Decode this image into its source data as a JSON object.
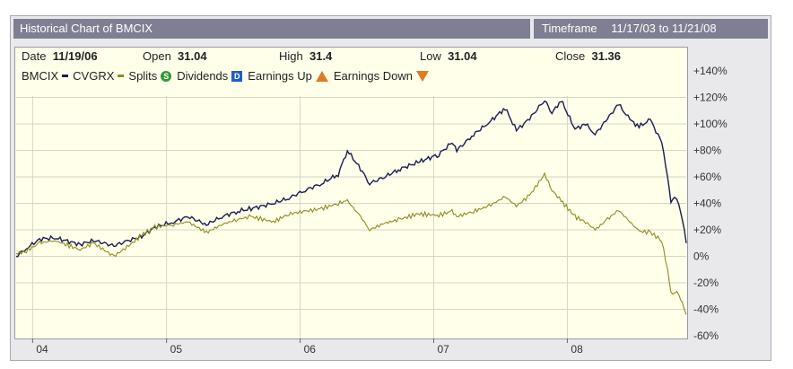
{
  "title": "Historical Chart of BMCIX",
  "timeframe": {
    "label": "Timeframe",
    "range": "11/17/03 to 11/21/08"
  },
  "info": [
    {
      "label": "Date",
      "value": "11/19/06"
    },
    {
      "label": "Open",
      "value": "31.04"
    },
    {
      "label": "High",
      "value": "31.4"
    },
    {
      "label": "Low",
      "value": "31.04"
    },
    {
      "label": "Close",
      "value": "31.36"
    }
  ],
  "legend": {
    "bmcix": "BMCIX",
    "cvgrx": "CVGRX",
    "splits": "Splits",
    "dividends": "Dividends",
    "earnings_up": "Earnings Up",
    "earnings_down": "Earnings Down",
    "splits_icon": "S",
    "dividends_icon": "D",
    "earnings_up_icon": "E",
    "earnings_down_icon": "E"
  },
  "colors": {
    "bmcix": "#1c1c52",
    "cvgrx": "#8f8c1e",
    "splits": "#2e9a2e",
    "dividends": "#1c5fc8",
    "earnings": "#e07b24",
    "grid": "#d6d6c8",
    "plot_bg": "#ffffea"
  },
  "chart_data": {
    "type": "line",
    "title": "Historical Chart of BMCIX",
    "x_ticks": [
      "04",
      "05",
      "06",
      "07",
      "08"
    ],
    "x_tick_dates": [
      "2004-01-01",
      "2005-01-01",
      "2006-01-01",
      "2007-01-01",
      "2008-01-01"
    ],
    "y_ticks": [
      "+140%",
      "+120%",
      "+100%",
      "+80%",
      "+60%",
      "+40%",
      "+20%",
      "0%",
      "-20%",
      "-40%",
      "-60%"
    ],
    "ylim": [
      -60,
      140
    ],
    "xlim": [
      "2003-11-17",
      "2008-11-21"
    ],
    "series": [
      {
        "name": "BMCIX",
        "color": "#1c1c52",
        "points": [
          [
            "2003-11-17",
            0
          ],
          [
            "2003-12-15",
            6
          ],
          [
            "2004-01-20",
            13
          ],
          [
            "2004-03-01",
            14
          ],
          [
            "2004-05-10",
            9
          ],
          [
            "2004-06-15",
            12
          ],
          [
            "2004-08-10",
            8
          ],
          [
            "2004-09-20",
            12
          ],
          [
            "2004-10-25",
            15
          ],
          [
            "2004-11-30",
            22
          ],
          [
            "2005-01-20",
            26
          ],
          [
            "2005-03-01",
            30
          ],
          [
            "2005-04-20",
            24
          ],
          [
            "2005-06-01",
            30
          ],
          [
            "2005-07-15",
            34
          ],
          [
            "2005-08-20",
            36
          ],
          [
            "2005-10-20",
            40
          ],
          [
            "2005-12-01",
            44
          ],
          [
            "2006-01-15",
            50
          ],
          [
            "2006-03-01",
            55
          ],
          [
            "2006-04-15",
            62
          ],
          [
            "2006-05-10",
            80
          ],
          [
            "2006-06-15",
            66
          ],
          [
            "2006-07-10",
            55
          ],
          [
            "2006-08-20",
            60
          ],
          [
            "2006-10-01",
            66
          ],
          [
            "2006-11-19",
            71
          ],
          [
            "2007-01-15",
            77
          ],
          [
            "2007-02-20",
            86
          ],
          [
            "2007-03-05",
            80
          ],
          [
            "2007-04-20",
            92
          ],
          [
            "2007-06-01",
            101
          ],
          [
            "2007-07-15",
            112
          ],
          [
            "2007-08-15",
            95
          ],
          [
            "2007-09-20",
            104
          ],
          [
            "2007-10-31",
            118
          ],
          [
            "2007-11-20",
            108
          ],
          [
            "2007-12-15",
            118
          ],
          [
            "2008-01-22",
            96
          ],
          [
            "2008-02-20",
            100
          ],
          [
            "2008-03-17",
            92
          ],
          [
            "2008-04-20",
            104
          ],
          [
            "2008-05-20",
            115
          ],
          [
            "2008-06-20",
            103
          ],
          [
            "2008-07-15",
            98
          ],
          [
            "2008-08-15",
            103
          ],
          [
            "2008-09-15",
            86
          ],
          [
            "2008-10-01",
            60
          ],
          [
            "2008-10-10",
            40
          ],
          [
            "2008-10-20",
            45
          ],
          [
            "2008-11-01",
            38
          ],
          [
            "2008-11-10",
            28
          ],
          [
            "2008-11-21",
            10
          ]
        ]
      },
      {
        "name": "CVGRX",
        "color": "#8f8c1e",
        "points": [
          [
            "2003-11-17",
            2
          ],
          [
            "2003-12-15",
            4
          ],
          [
            "2004-01-20",
            10
          ],
          [
            "2004-03-01",
            12
          ],
          [
            "2004-05-10",
            5
          ],
          [
            "2004-06-15",
            10
          ],
          [
            "2004-08-10",
            0
          ],
          [
            "2004-09-20",
            8
          ],
          [
            "2004-10-25",
            16
          ],
          [
            "2004-11-30",
            22
          ],
          [
            "2005-01-20",
            24
          ],
          [
            "2005-03-01",
            26
          ],
          [
            "2005-04-20",
            18
          ],
          [
            "2005-06-01",
            24
          ],
          [
            "2005-07-15",
            28
          ],
          [
            "2005-08-20",
            30
          ],
          [
            "2005-10-20",
            26
          ],
          [
            "2005-12-01",
            32
          ],
          [
            "2006-01-15",
            34
          ],
          [
            "2006-03-01",
            36
          ],
          [
            "2006-04-15",
            40
          ],
          [
            "2006-05-10",
            42
          ],
          [
            "2006-06-15",
            30
          ],
          [
            "2006-07-10",
            20
          ],
          [
            "2006-08-20",
            25
          ],
          [
            "2006-10-01",
            28
          ],
          [
            "2006-11-19",
            32
          ],
          [
            "2007-01-15",
            31
          ],
          [
            "2007-02-20",
            34
          ],
          [
            "2007-03-05",
            30
          ],
          [
            "2007-04-20",
            34
          ],
          [
            "2007-06-01",
            38
          ],
          [
            "2007-07-15",
            45
          ],
          [
            "2007-08-15",
            38
          ],
          [
            "2007-09-20",
            46
          ],
          [
            "2007-10-31",
            62
          ],
          [
            "2007-11-20",
            50
          ],
          [
            "2007-12-15",
            42
          ],
          [
            "2008-01-22",
            30
          ],
          [
            "2008-02-20",
            26
          ],
          [
            "2008-03-17",
            20
          ],
          [
            "2008-04-20",
            28
          ],
          [
            "2008-05-20",
            35
          ],
          [
            "2008-06-20",
            26
          ],
          [
            "2008-07-15",
            19
          ],
          [
            "2008-08-15",
            18
          ],
          [
            "2008-09-15",
            12
          ],
          [
            "2008-10-01",
            -10
          ],
          [
            "2008-10-10",
            -28
          ],
          [
            "2008-10-20",
            -26
          ],
          [
            "2008-11-01",
            -30
          ],
          [
            "2008-11-10",
            -35
          ],
          [
            "2008-11-21",
            -44
          ]
        ]
      }
    ]
  }
}
